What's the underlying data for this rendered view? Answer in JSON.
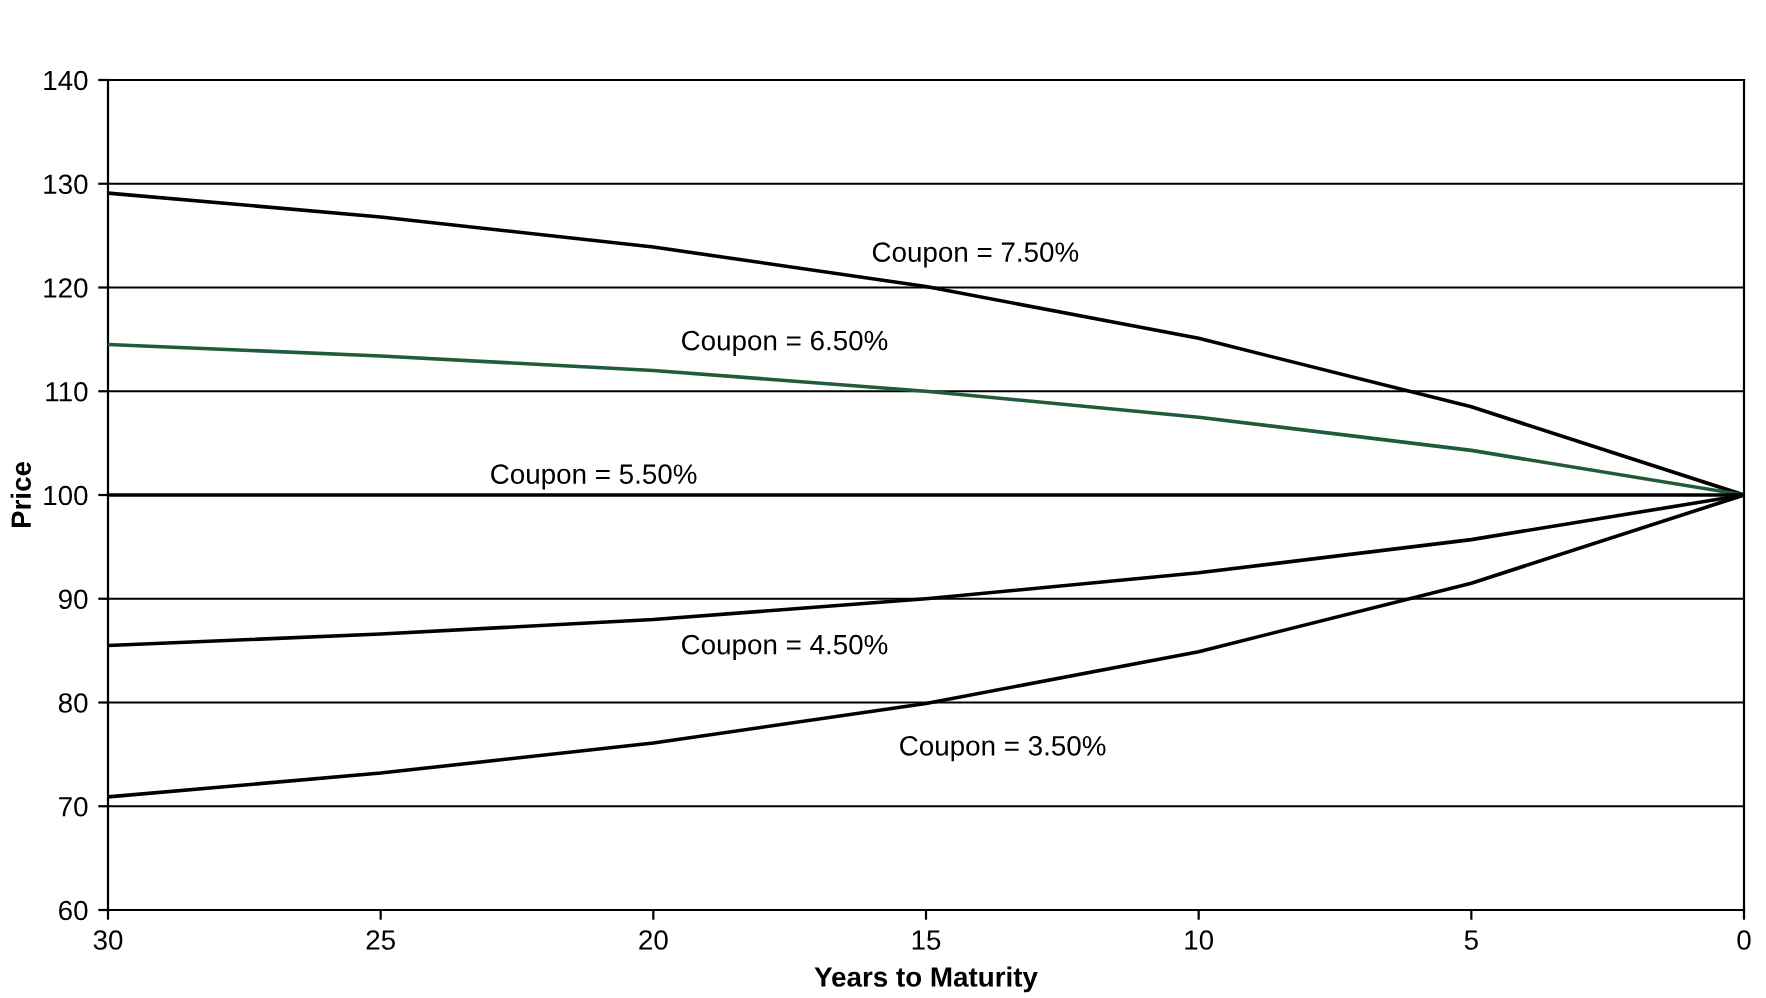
{
  "chart_data": {
    "type": "line",
    "xlabel": "Years to Maturity",
    "ylabel": "Price",
    "x": [
      30,
      25,
      20,
      15,
      10,
      5,
      0
    ],
    "series": [
      {
        "name": "Coupon = 7.50%",
        "color": "#000000",
        "values": [
          129.1,
          126.8,
          123.9,
          120.1,
          115.1,
          108.5,
          100
        ]
      },
      {
        "name": "Coupon = 6.50%",
        "color": "#1e5c3a",
        "values": [
          114.5,
          113.4,
          112.0,
          110.0,
          107.5,
          104.3,
          100
        ]
      },
      {
        "name": "Coupon = 5.50%",
        "color": "#000000",
        "values": [
          100,
          100,
          100,
          100,
          100,
          100,
          100
        ]
      },
      {
        "name": "Coupon = 4.50%",
        "color": "#000000",
        "values": [
          85.5,
          86.6,
          88.0,
          90.0,
          92.5,
          95.7,
          100
        ]
      },
      {
        "name": "Coupon = 3.50%",
        "color": "#000000",
        "values": [
          70.9,
          73.2,
          76.1,
          79.9,
          84.9,
          91.5,
          100
        ]
      }
    ],
    "xlim": [
      30,
      0
    ],
    "xticks": [
      30,
      25,
      20,
      15,
      10,
      5,
      0
    ],
    "ylim": [
      60,
      140
    ],
    "yticks": [
      60,
      70,
      80,
      90,
      100,
      110,
      120,
      130,
      140
    ],
    "grid": "y",
    "marker": "none",
    "line_style": "solid"
  }
}
